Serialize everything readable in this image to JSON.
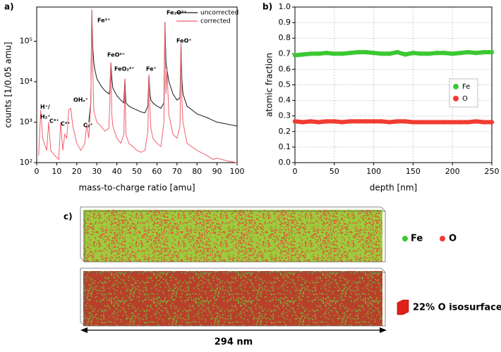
{
  "chart_data": [
    {
      "type": "line",
      "panel_label": "a)",
      "xlabel": "mass-to-charge ratio [amu]",
      "ylabel": "counts [1/0.05 amu]",
      "log_y": true,
      "grid": false,
      "legend": "upper right",
      "xlim": [
        0,
        100
      ],
      "xticks": [
        0,
        10,
        20,
        30,
        40,
        50,
        60,
        70,
        80,
        90,
        100
      ],
      "ylim": [
        100,
        700000
      ],
      "yticks": [
        {
          "value": 100,
          "label": "10²"
        },
        {
          "value": 1000,
          "label": "10³"
        },
        {
          "value": 10000,
          "label": "10⁴"
        },
        {
          "value": 100000,
          "label": "10⁵"
        }
      ],
      "x": [
        1,
        2,
        3,
        5,
        6,
        7,
        9,
        11,
        12,
        13,
        14,
        15,
        16,
        17,
        18,
        19,
        20,
        22,
        24,
        25,
        26,
        27,
        27.5,
        28,
        28.5,
        29,
        30,
        32,
        34,
        36,
        36.5,
        37,
        37.5,
        38,
        40,
        42,
        43.5,
        44,
        44.5,
        46,
        48,
        50,
        52,
        54,
        55.5,
        56,
        56.5,
        57,
        58,
        60,
        62,
        63.5,
        64,
        64.5,
        65,
        66,
        68,
        70,
        71.5,
        72,
        72.5,
        73,
        75,
        80,
        85,
        88,
        90,
        95,
        100
      ],
      "series": [
        {
          "name": "uncorrected",
          "color": "#1a1a1a",
          "values": [
            null,
            null,
            null,
            null,
            null,
            null,
            null,
            null,
            null,
            null,
            null,
            null,
            null,
            null,
            null,
            null,
            null,
            null,
            null,
            null,
            1000,
            3000,
            600000,
            70000,
            30000,
            20000,
            12000,
            8000,
            6000,
            5000,
            6000,
            30000,
            12000,
            7000,
            4500,
            3500,
            3000,
            12000,
            3000,
            2500,
            2200,
            2000,
            1800,
            1700,
            2500,
            15000,
            5000,
            3500,
            3000,
            2500,
            2200,
            3000,
            300000,
            30000,
            20000,
            10000,
            5000,
            3500,
            4000,
            90000,
            10000,
            5000,
            2500,
            1600,
            1300,
            1100,
            1000,
            900,
            800
          ]
        },
        {
          "name": "corrected",
          "color": "#f0606e",
          "values": [
            150,
            2000,
            400,
            200,
            1000,
            200,
            150,
            120,
            1000,
            200,
            500,
            400,
            2000,
            2200,
            800,
            500,
            300,
            200,
            300,
            900,
            400,
            3000,
            600000,
            20000,
            2000,
            1500,
            1000,
            800,
            600,
            700,
            3000,
            30000,
            1500,
            800,
            400,
            300,
            500,
            12000,
            500,
            300,
            250,
            200,
            180,
            200,
            600,
            15000,
            2000,
            700,
            400,
            300,
            250,
            1000,
            300000,
            5000,
            20000,
            1500,
            500,
            400,
            800,
            90000,
            3000,
            1000,
            300,
            200,
            150,
            120,
            130,
            110,
            100
          ]
        }
      ],
      "annotations": [
        "H⁺/",
        "H₂⁺",
        "C³⁺",
        "C²⁺",
        "OHₓ⁺",
        "C₂⁺",
        "Fe²⁺",
        "FeO²⁺",
        "FeO₂²⁺",
        "Fe⁺",
        "Fe₂O²⁺",
        "FeO⁺"
      ]
    },
    {
      "type": "scatter",
      "panel_label": "b)",
      "xlabel": "depth [nm]",
      "ylabel": "atomic fraction",
      "grid": true,
      "legend": "center right",
      "xlim": [
        0,
        250
      ],
      "xticks": [
        0,
        50,
        100,
        150,
        200,
        250
      ],
      "ylim": [
        0,
        1
      ],
      "yticks": [
        {
          "value": 0,
          "label": "0.0"
        },
        0.1,
        0.2,
        0.3,
        0.4,
        0.5,
        0.6,
        0.7,
        0.8,
        0.9,
        {
          "value": 1,
          "label": "1.0"
        }
      ],
      "x": [
        0,
        10,
        20,
        30,
        40,
        50,
        60,
        70,
        80,
        90,
        100,
        110,
        120,
        130,
        140,
        150,
        160,
        170,
        180,
        190,
        200,
        210,
        220,
        230,
        240,
        250
      ],
      "series": [
        {
          "name": "Fe",
          "color": "#3cc832",
          "values": [
            0.69,
            0.695,
            0.7,
            0.7,
            0.705,
            0.7,
            0.7,
            0.705,
            0.71,
            0.71,
            0.705,
            0.7,
            0.7,
            0.71,
            0.695,
            0.705,
            0.7,
            0.7,
            0.705,
            0.705,
            0.7,
            0.705,
            0.71,
            0.705,
            0.71,
            0.71
          ]
        },
        {
          "name": "O",
          "color": "#f03c32",
          "values": [
            0.265,
            0.26,
            0.265,
            0.26,
            0.265,
            0.265,
            0.26,
            0.265,
            0.265,
            0.265,
            0.265,
            0.265,
            0.26,
            0.265,
            0.265,
            0.26,
            0.26,
            0.26,
            0.26,
            0.26,
            0.26,
            0.26,
            0.26,
            0.265,
            0.26,
            0.26
          ]
        }
      ]
    }
  ],
  "panel_c": {
    "label": "c)",
    "legend": [
      "Fe",
      "O"
    ],
    "isosurface": "22% O isosurface",
    "scale_bar": "294 nm"
  }
}
